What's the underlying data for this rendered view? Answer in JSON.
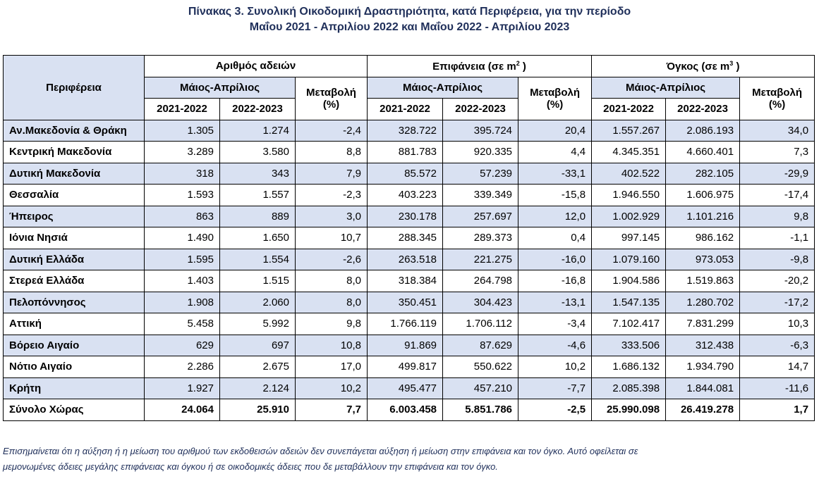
{
  "title": {
    "line1": "Πίνακας 3. Συνολική Οικοδομική Δραστηριότητα, κατά Περιφέρεια, για την περίοδο",
    "line2": "Μαΐου 2021 - Απριλίου 2022 και Μαΐου 2022 - Απριλίου 2023"
  },
  "header": {
    "region": "Περιφέρεια",
    "groups": [
      {
        "label": "Αριθμός αδειών",
        "sup": ""
      },
      {
        "label": "Επιφάνεια (σε m",
        "sup": "2",
        "suffix": " )"
      },
      {
        "label": "Όγκος (σε m",
        "sup": "3",
        "suffix": " )"
      }
    ],
    "period": "Μάιος-Απρίλιος",
    "change_line1": "Μεταβολή",
    "change_line2": "(%)",
    "year1": "2021-2022",
    "year2": "2022-2023"
  },
  "rows": [
    {
      "region": "Αν.Μακεδονία & Θράκη",
      "v": [
        "1.305",
        "1.274",
        "-2,4",
        "328.722",
        "395.724",
        "20,4",
        "1.557.267",
        "2.086.193",
        "34,0"
      ]
    },
    {
      "region": "Κεντρική Μακεδονία",
      "v": [
        "3.289",
        "3.580",
        "8,8",
        "881.783",
        "920.335",
        "4,4",
        "4.345.351",
        "4.660.401",
        "7,3"
      ]
    },
    {
      "region": "Δυτική Μακεδονία",
      "v": [
        "318",
        "343",
        "7,9",
        "85.572",
        "57.239",
        "-33,1",
        "402.522",
        "282.105",
        "-29,9"
      ]
    },
    {
      "region": "Θεσσαλία",
      "v": [
        "1.593",
        "1.557",
        "-2,3",
        "403.223",
        "339.349",
        "-15,8",
        "1.946.550",
        "1.606.975",
        "-17,4"
      ]
    },
    {
      "region": "Ήπειρος",
      "v": [
        "863",
        "889",
        "3,0",
        "230.178",
        "257.697",
        "12,0",
        "1.002.929",
        "1.101.216",
        "9,8"
      ]
    },
    {
      "region": "Ιόνια Νησιά",
      "v": [
        "1.490",
        "1.650",
        "10,7",
        "288.345",
        "289.373",
        "0,4",
        "997.145",
        "986.162",
        "-1,1"
      ]
    },
    {
      "region": "Δυτική Ελλάδα",
      "v": [
        "1.595",
        "1.554",
        "-2,6",
        "263.518",
        "221.275",
        "-16,0",
        "1.079.160",
        "973.053",
        "-9,8"
      ]
    },
    {
      "region": "Στερεά Ελλάδα",
      "v": [
        "1.403",
        "1.515",
        "8,0",
        "318.384",
        "264.798",
        "-16,8",
        "1.904.586",
        "1.519.863",
        "-20,2"
      ]
    },
    {
      "region": "Πελοπόννησος",
      "v": [
        "1.908",
        "2.060",
        "8,0",
        "350.451",
        "304.423",
        "-13,1",
        "1.547.135",
        "1.280.702",
        "-17,2"
      ]
    },
    {
      "region": "Αττική",
      "v": [
        "5.458",
        "5.992",
        "9,8",
        "1.766.119",
        "1.706.112",
        "-3,4",
        "7.102.417",
        "7.831.299",
        "10,3"
      ]
    },
    {
      "region": "Βόρειο Αιγαίο",
      "v": [
        "629",
        "697",
        "10,8",
        "91.869",
        "87.629",
        "-4,6",
        "333.506",
        "312.438",
        "-6,3"
      ]
    },
    {
      "region": "Νότιο Αιγαίο",
      "v": [
        "2.286",
        "2.675",
        "17,0",
        "499.817",
        "550.622",
        "10,2",
        "1.686.132",
        "1.934.790",
        "14,7"
      ]
    },
    {
      "region": "Κρήτη",
      "v": [
        "1.927",
        "2.124",
        "10,2",
        "495.477",
        "457.210",
        "-7,7",
        "2.085.398",
        "1.844.081",
        "-11,6"
      ]
    }
  ],
  "total": {
    "region": "Σύνολο Χώρας",
    "v": [
      "24.064",
      "25.910",
      "7,7",
      "6.003.458",
      "5.851.786",
      "-2,5",
      "25.990.098",
      "26.419.278",
      "1,7"
    ]
  },
  "footnote": {
    "line1": "Επισημαίνεται ότι η αύξηση ή η μείωση του αριθμού των εκδοθεισών αδειών δεν συνεπάγεται αύξηση ή μείωση στην επιφάνεια και τον όγκο. Αυτό οφείλεται σε",
    "line2": "μεμονωμένες άδειες μεγάλης επιφάνειας και όγκου ή σε οικοδομικές άδειες που δε μεταβάλλουν την επιφάνεια και τον όγκο."
  }
}
